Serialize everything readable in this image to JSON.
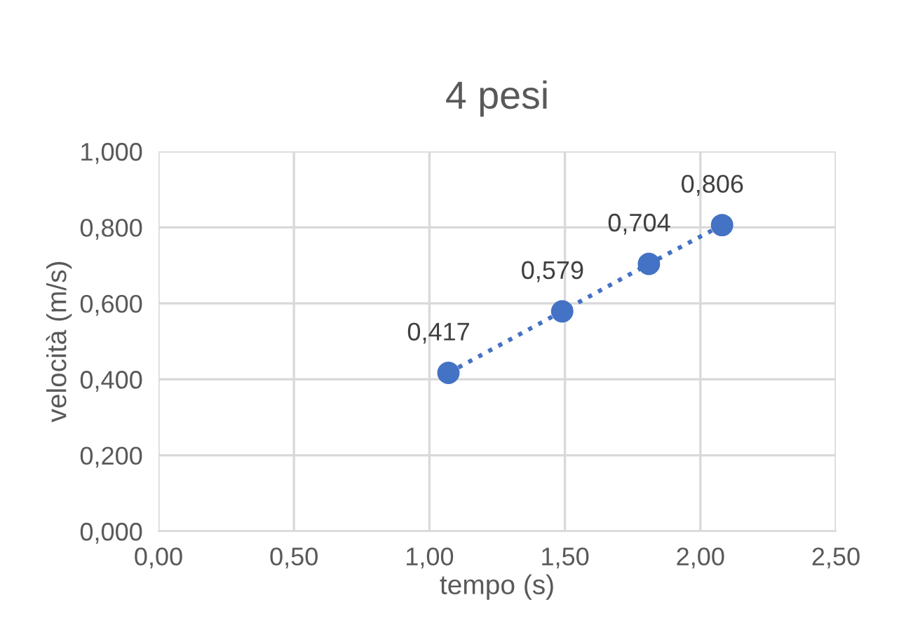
{
  "chart_data": {
    "type": "line",
    "title": "4 pesi",
    "xlabel": "tempo (s)",
    "ylabel": "velocità (m/s)",
    "x": [
      1.07,
      1.49,
      1.81,
      2.08
    ],
    "series": [
      {
        "color": "#4472c4",
        "values": [
          0.417,
          0.579,
          0.704,
          0.806
        ]
      }
    ],
    "xlim": [
      0,
      2.5
    ],
    "xticks": [
      {
        "value": 0,
        "label": "0,00"
      },
      {
        "value": 0.5,
        "label": "0,50"
      },
      {
        "value": 1,
        "label": "1,00"
      },
      {
        "value": 1.5,
        "label": "1,50"
      },
      {
        "value": 2,
        "label": "2,00"
      },
      {
        "value": 2.5,
        "label": "2,50"
      }
    ],
    "ylim": [
      0,
      1
    ],
    "yticks": [
      {
        "value": 0,
        "label": "0,000"
      },
      {
        "value": 0.2,
        "label": "0,200"
      },
      {
        "value": 0.4,
        "label": "0,400"
      },
      {
        "value": 0.6,
        "label": "0,600"
      },
      {
        "value": 0.8,
        "label": "0,800"
      },
      {
        "value": 1,
        "label": "1,000"
      }
    ],
    "value_labels": [
      "0,417",
      "0,579",
      "0,704",
      "0,806"
    ],
    "grid": true,
    "marker": "circle",
    "line_style": "dotted"
  }
}
